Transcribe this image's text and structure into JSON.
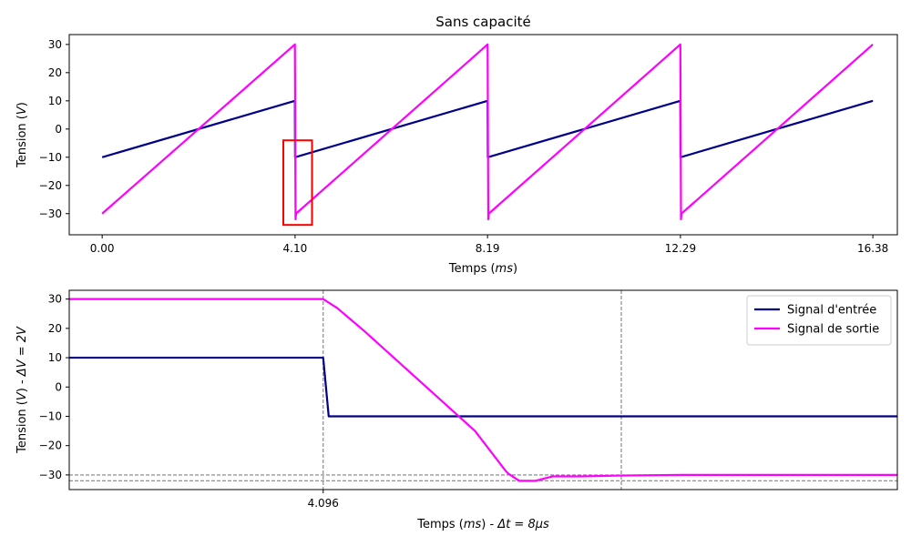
{
  "chart_data": [
    {
      "type": "line",
      "title": "Sans capacité",
      "xlabel": "Temps ($ms$)",
      "ylabel": "Tension ($V$)",
      "xlim": [
        -0.7,
        16.9
      ],
      "ylim": [
        -37.5,
        33.5
      ],
      "xticks": [
        0.0,
        4.1,
        8.19,
        12.29,
        16.38
      ],
      "xtick_labels": [
        "0.00",
        "4.10",
        "8.19",
        "12.29",
        "16.38"
      ],
      "yticks": [
        -30,
        -20,
        -10,
        0,
        10,
        20,
        30
      ],
      "ytick_labels": [
        "−30",
        "−20",
        "−10",
        "0",
        "10",
        "20",
        "30"
      ],
      "series": [
        {
          "color": "#00008b",
          "x": [
            0,
            4.096,
            4.1,
            8.192,
            8.196,
            12.288,
            12.292,
            16.38
          ],
          "y": [
            -10,
            10,
            -10,
            10,
            -10,
            10,
            -10,
            10
          ]
        },
        {
          "color": "#ff00ff",
          "x": [
            0,
            4.096,
            4.11,
            4.12,
            8.192,
            8.206,
            8.216,
            12.288,
            12.302,
            12.312,
            16.38
          ],
          "y": [
            -30,
            30,
            -32,
            -30,
            30,
            -32,
            -30,
            30,
            -32,
            -30,
            30
          ]
        }
      ],
      "zoom_box": {
        "x": [
          3.85,
          4.46
        ],
        "y": [
          -34,
          -4
        ],
        "color": "#ff0000"
      }
    },
    {
      "type": "line",
      "title": "",
      "xlabel": "Temps ($ms$) - $\\Delta t = 8\\mu s$",
      "ylabel": "Tension ($V$) - $\\Delta V = 2V$",
      "xlim": [
        4.0868,
        4.1168
      ],
      "ylim": [
        -35,
        33
      ],
      "xticks": [
        4.096
      ],
      "xtick_labels": [
        "4.096"
      ],
      "yticks": [
        -30,
        -20,
        -10,
        0,
        10,
        20,
        30
      ],
      "ytick_labels": [
        "−30",
        "−20",
        "−10",
        "0",
        "10",
        "20",
        "30"
      ],
      "vlines": [
        4.096,
        4.1068
      ],
      "hlines": [
        -30,
        -32
      ],
      "legend": "top-right",
      "series": [
        {
          "name": "Signal d'entrée",
          "color": "#00008b",
          "x": [
            4.0868,
            4.096,
            4.0962,
            4.1168
          ],
          "y": [
            10,
            10,
            -10,
            -10
          ]
        },
        {
          "name": "Signal de sortie",
          "color": "#ff00ff",
          "x": [
            4.0868,
            4.096,
            4.0965,
            4.0975,
            4.0985,
            4.0995,
            4.1005,
            4.1015,
            4.1026,
            4.1027,
            4.1031,
            4.1033,
            4.1037,
            4.1043,
            4.1053,
            4.1068,
            4.109,
            4.1168
          ],
          "y": [
            30,
            30,
            27,
            19,
            10.5,
            2,
            -6.5,
            -15,
            -28.5,
            -29.5,
            -32,
            -32,
            -32,
            -30.5,
            -30.5,
            -30.2,
            -30,
            -30
          ]
        }
      ]
    }
  ]
}
